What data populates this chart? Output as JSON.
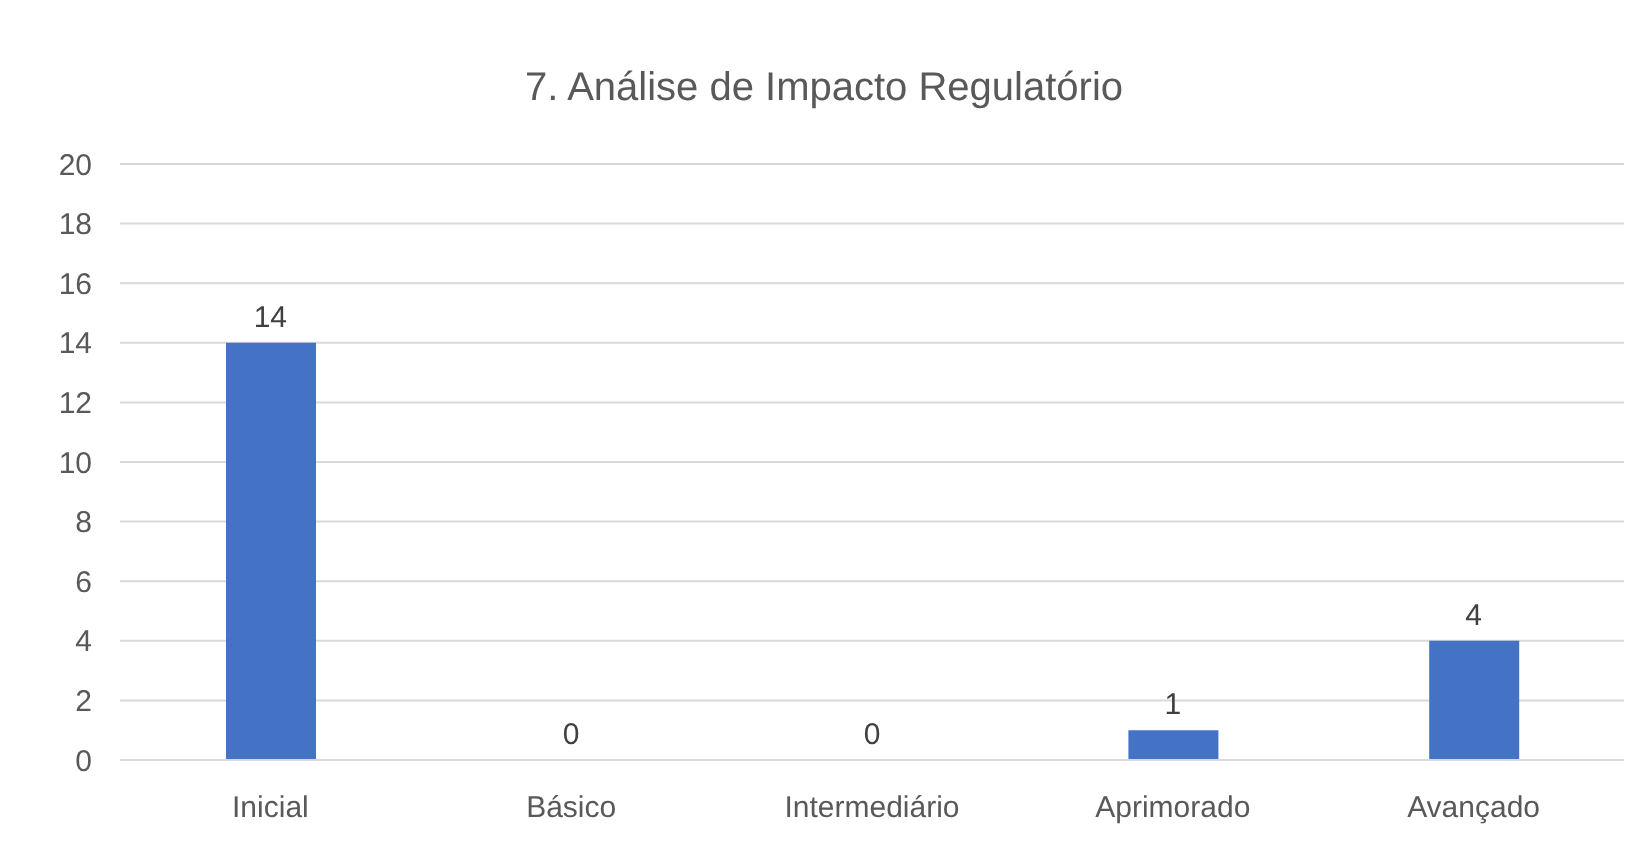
{
  "chart_data": {
    "type": "bar",
    "title": "7. Análise de Impacto Regulatório",
    "categories": [
      "Inicial",
      "Básico",
      "Intermediário",
      "Aprimorado",
      "Avançado"
    ],
    "values": [
      14,
      0,
      0,
      1,
      4
    ],
    "color": "#4472c4",
    "ylim": [
      0,
      20
    ],
    "yticks": [
      0,
      2,
      4,
      6,
      8,
      10,
      12,
      14,
      16,
      18,
      20
    ],
    "grid": "y",
    "data_labels": true
  }
}
